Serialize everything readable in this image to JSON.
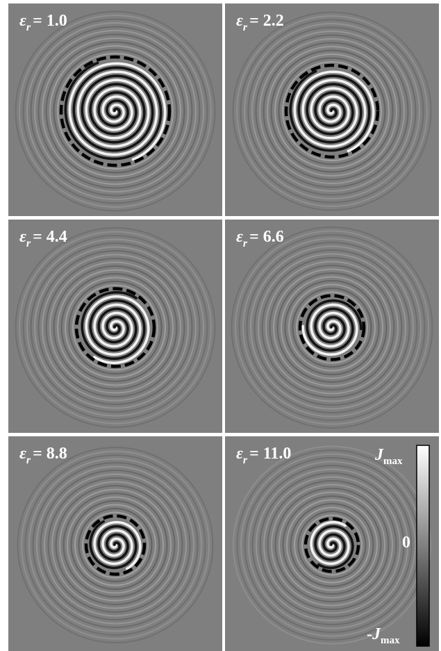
{
  "panels": [
    {
      "symbol": "ε",
      "subscript": "r",
      "text": "= 1.0"
    },
    {
      "symbol": "ε",
      "subscript": "r",
      "text": "= 2.2"
    },
    {
      "symbol": "ε",
      "subscript": "r",
      "text": "= 4.4"
    },
    {
      "symbol": "ε",
      "subscript": "r",
      "text": "= 6.6"
    },
    {
      "symbol": "ε",
      "subscript": "r",
      "text": "= 8.8"
    },
    {
      "symbol": "ε",
      "subscript": "r",
      "text": "= 11.0"
    }
  ],
  "colorbar": {
    "top": {
      "text": "J",
      "subscript": "max"
    },
    "middle": "0",
    "bottom": {
      "prefix": "-",
      "text": "J",
      "subscript": "max"
    }
  }
}
